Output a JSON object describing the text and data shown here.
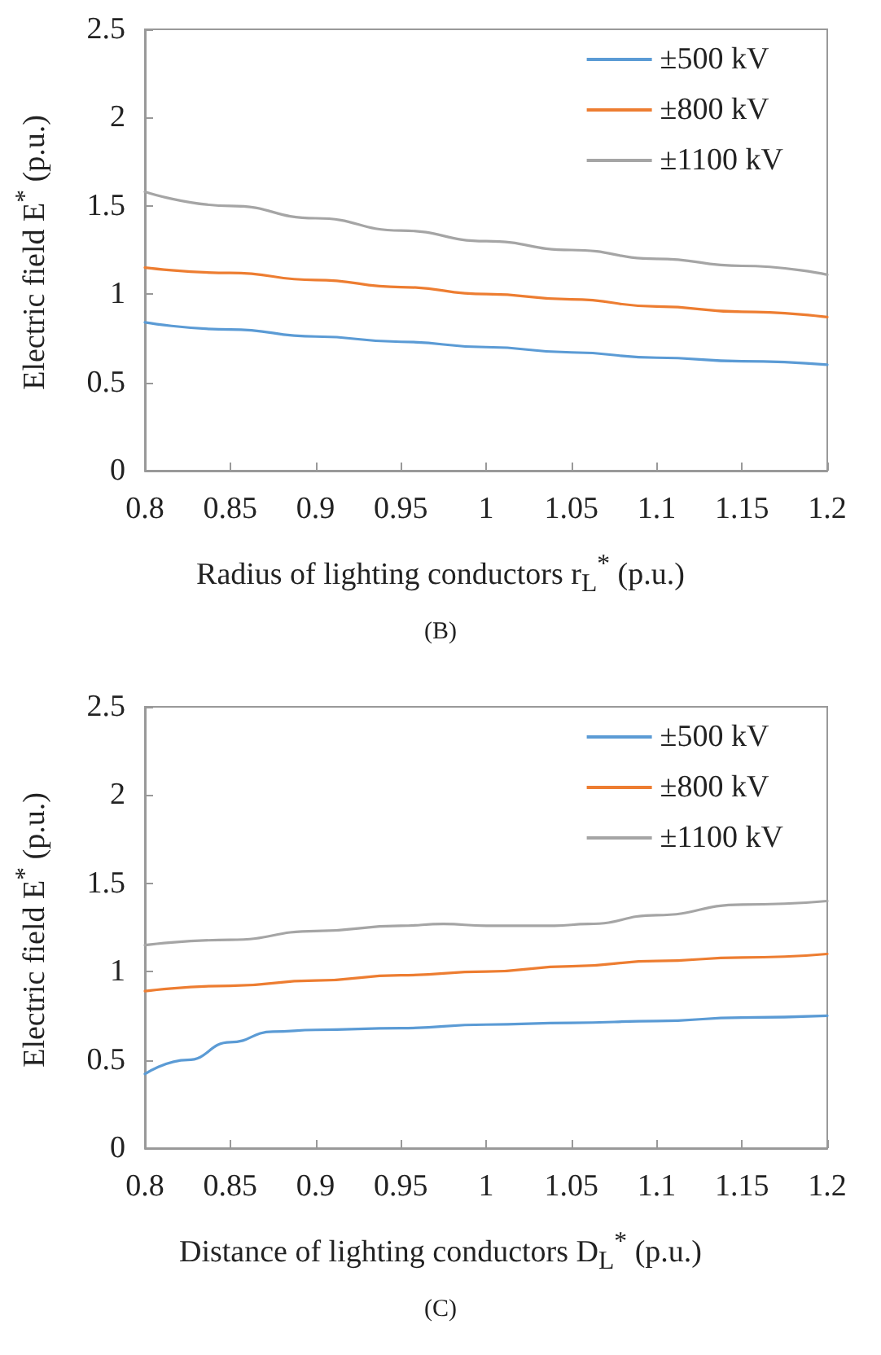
{
  "chart_data": [
    {
      "type": "line",
      "xlabel": "Radius of lighting conductors r$_{L}$$^{*}$ (p.u.)",
      "ylabel": "Electric field E$^{*}$ (p.u.)",
      "annotations": [
        "(B)"
      ],
      "x": [
        0.8,
        0.85,
        0.9,
        0.95,
        1.0,
        1.05,
        1.1,
        1.15,
        1.2
      ],
      "series": [
        {
          "name": "±500 kV",
          "color": "#5b9bd5",
          "values": [
            0.84,
            0.8,
            0.76,
            0.73,
            0.7,
            0.67,
            0.64,
            0.62,
            0.6
          ]
        },
        {
          "name": "±800 kV",
          "color": "#ed7d31",
          "values": [
            1.15,
            1.12,
            1.08,
            1.04,
            1.0,
            0.97,
            0.93,
            0.9,
            0.87
          ]
        },
        {
          "name": "±1100 kV",
          "color": "#a5a5a5",
          "values": [
            1.58,
            1.5,
            1.43,
            1.36,
            1.3,
            1.25,
            1.2,
            1.16,
            1.11
          ]
        }
      ],
      "xlim": [
        0.8,
        1.2
      ],
      "xticks": [
        0.8,
        0.85,
        0.9,
        0.95,
        1,
        1.05,
        1.1,
        1.15,
        1.2
      ],
      "ylim": [
        0,
        2.5
      ],
      "yticks": [
        0,
        0.5,
        1,
        1.5,
        2,
        2.5
      ],
      "grid": false,
      "legend": "top right",
      "marker": "none",
      "line_style": "solid"
    },
    {
      "type": "line",
      "xlabel": "Distance of lighting conductors D$_{L}$$^{*}$ (p.u.)",
      "ylabel": "Electric field E$^{*}$ (p.u.)",
      "annotations": [
        "(C)"
      ],
      "series": [
        {
          "name": "±500 kV",
          "color": "#5b9bd5",
          "x": [
            0.8,
            0.825,
            0.85,
            0.875,
            0.9,
            0.95,
            1.0,
            1.05,
            1.1,
            1.15,
            1.2
          ],
          "values": [
            0.42,
            0.5,
            0.6,
            0.66,
            0.67,
            0.68,
            0.7,
            0.71,
            0.72,
            0.74,
            0.75
          ]
        },
        {
          "name": "±800 kV",
          "color": "#ed7d31",
          "x": [
            0.8,
            0.85,
            0.9,
            0.95,
            1.0,
            1.05,
            1.1,
            1.15,
            1.2
          ],
          "values": [
            0.89,
            0.92,
            0.95,
            0.98,
            1.0,
            1.03,
            1.06,
            1.08,
            1.1
          ]
        },
        {
          "name": "±1100 kV",
          "color": "#a5a5a5",
          "x": [
            0.8,
            0.85,
            0.9,
            0.95,
            0.975,
            1.0,
            1.04,
            1.06,
            1.1,
            1.15,
            1.2
          ],
          "values": [
            1.15,
            1.18,
            1.23,
            1.26,
            1.27,
            1.26,
            1.26,
            1.27,
            1.32,
            1.38,
            1.4
          ]
        }
      ],
      "xlim": [
        0.8,
        1.2
      ],
      "xticks": [
        0.8,
        0.85,
        0.9,
        0.95,
        1,
        1.05,
        1.1,
        1.15,
        1.2
      ],
      "ylim": [
        0,
        2.5
      ],
      "yticks": [
        0,
        0.5,
        1,
        1.5,
        2,
        2.5
      ],
      "grid": false,
      "legend": "top right",
      "marker": "none",
      "line_style": "solid"
    }
  ]
}
